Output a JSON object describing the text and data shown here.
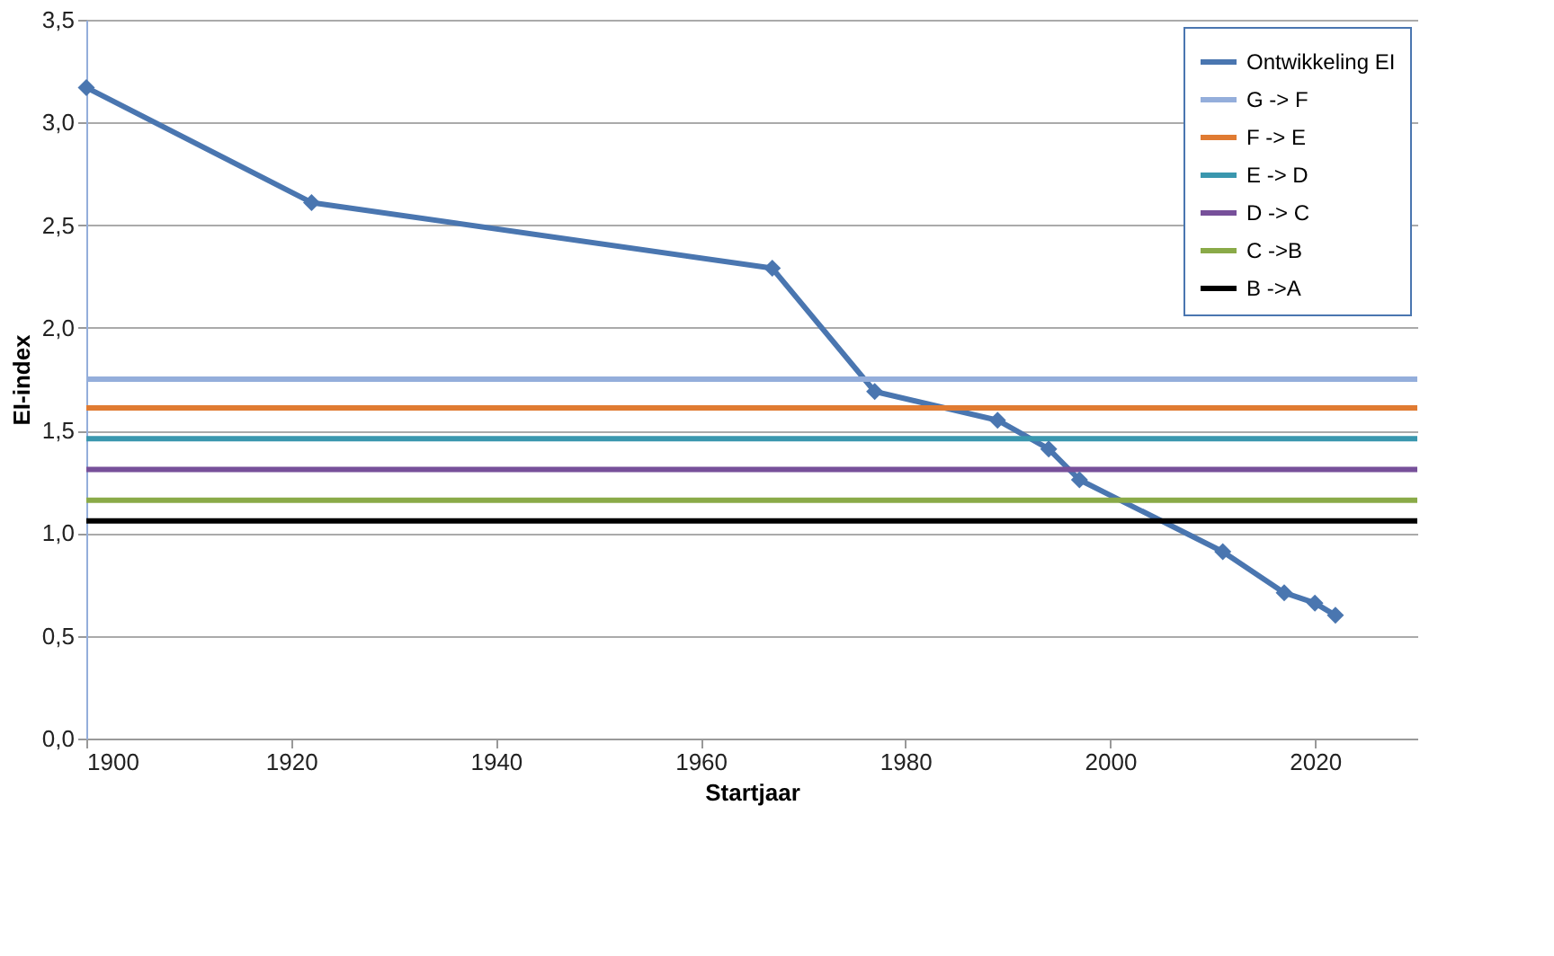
{
  "chart_data": {
    "type": "line",
    "xlabel": "Startjaar",
    "ylabel": "EI-index",
    "xlim": [
      1900,
      2030
    ],
    "xticks": [
      1900,
      1920,
      1940,
      1960,
      1980,
      2000,
      2020
    ],
    "ylim": [
      0,
      3.5
    ],
    "yticks": [
      {
        "value": 0,
        "label": "0,0"
      },
      {
        "value": 0.5,
        "label": "0,5"
      },
      {
        "value": 1,
        "label": "1,0"
      },
      {
        "value": 1.5,
        "label": "1,5"
      },
      {
        "value": 2,
        "label": "2,0"
      },
      {
        "value": 2.5,
        "label": "2,5"
      },
      {
        "value": 3,
        "label": "3,0"
      },
      {
        "value": 3.5,
        "label": "3,5"
      }
    ],
    "grid": "y",
    "legend": "top right",
    "line_style": "solid",
    "series": [
      {
        "name": "Ontwikkeling EI",
        "color": "#4a76b0",
        "marker": "diamond",
        "x": [
          1900,
          1922,
          1967,
          1977,
          1989,
          1994,
          1997,
          2011,
          2017,
          2020,
          2022
        ],
        "values": [
          3.17,
          2.61,
          2.29,
          1.69,
          1.55,
          1.41,
          1.26,
          0.91,
          0.71,
          0.66,
          0.6
        ]
      },
      {
        "name": "G -> F",
        "color": "#94aedb",
        "marker": "none",
        "x": [
          1900,
          2030
        ],
        "values": [
          1.75,
          1.75
        ]
      },
      {
        "name": "F -> E",
        "color": "#e07b32",
        "marker": "none",
        "x": [
          1900,
          2030
        ],
        "values": [
          1.61,
          1.61
        ]
      },
      {
        "name": "E -> D",
        "color": "#3a97ae",
        "marker": "none",
        "x": [
          1900,
          2030
        ],
        "values": [
          1.46,
          1.46
        ]
      },
      {
        "name": "D -> C",
        "color": "#77509a",
        "marker": "none",
        "x": [
          1900,
          2030
        ],
        "values": [
          1.31,
          1.31
        ]
      },
      {
        "name": "C ->B",
        "color": "#8aaa48",
        "marker": "none",
        "x": [
          1900,
          2030
        ],
        "values": [
          1.16,
          1.16
        ]
      },
      {
        "name": "B ->A",
        "color": "#000000",
        "marker": "none",
        "x": [
          1900,
          2030
        ],
        "values": [
          1.06,
          1.06
        ]
      }
    ]
  }
}
